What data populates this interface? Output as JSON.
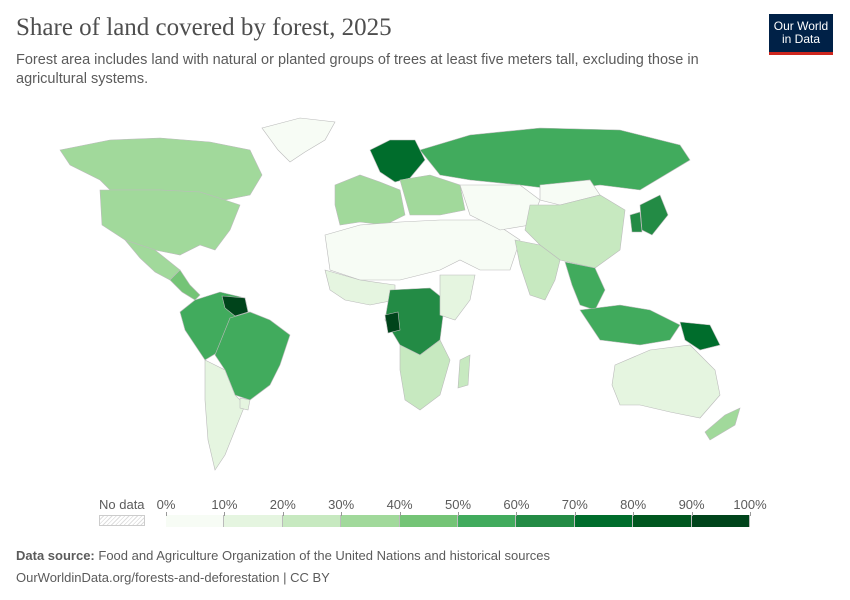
{
  "header": {
    "title": "Share of land covered by forest, 2025",
    "subtitle": "Forest area includes land with natural or planted groups of trees at least five meters tall, excluding those in agricultural systems.",
    "logo": {
      "line1": "Our World",
      "line2": "in Data"
    }
  },
  "legend": {
    "no_data": "No data",
    "labels": [
      "0%",
      "10%",
      "20%",
      "30%",
      "40%",
      "50%",
      "60%",
      "70%",
      "80%",
      "90%",
      "100%"
    ],
    "colors": [
      "#f7fcf5",
      "#e5f5e0",
      "#c7e9c0",
      "#a1d99b",
      "#74c476",
      "#41ab5d",
      "#238b45",
      "#006d2c",
      "#00571f",
      "#00441b"
    ]
  },
  "map_regions": {
    "greenland": 0,
    "canada": 39,
    "usa": 34,
    "mexico": 33,
    "central-america": 45,
    "northern-south-america": 55,
    "guianas": 92,
    "brazil": 59,
    "argentina-chile": 12,
    "uruguay": 12,
    "western-europe": 32,
    "scandinavia": 70,
    "eastern-europe": 35,
    "russia": 50,
    "sahara-middle-east": 2,
    "west-africa": 15,
    "congo-basin": 65,
    "gabon": 91,
    "east-africa": 18,
    "southern-africa": 25,
    "madagascar": 21,
    "central-asia": 3,
    "china": 24,
    "india": 24,
    "mongolia": 9,
    "southeast-asia": 55,
    "indonesia": 50,
    "papua": 79,
    "japan": 68,
    "korea": 63,
    "australia": 17,
    "new-zealand": 37
  },
  "footer": {
    "source_label": "Data source:",
    "source": "Food and Agriculture Organization of the United Nations and historical sources",
    "url": "OurWorldinData.org/forests-and-deforestation",
    "license": "CC BY"
  }
}
